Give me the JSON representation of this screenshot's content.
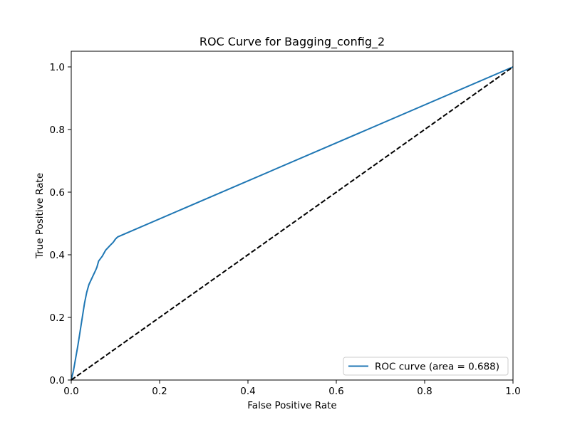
{
  "chart_data": {
    "type": "line",
    "title": "ROC Curve for Bagging_config_2",
    "xlabel": "False Positive Rate",
    "ylabel": "True Positive Rate",
    "xlim": [
      0.0,
      1.0
    ],
    "ylim": [
      0.0,
      1.05
    ],
    "xticks": [
      "0.0",
      "0.2",
      "0.4",
      "0.6",
      "0.8",
      "1.0"
    ],
    "yticks": [
      "0.0",
      "0.2",
      "0.4",
      "0.6",
      "0.8",
      "1.0"
    ],
    "grid": false,
    "legend_position": "lower right",
    "series": [
      {
        "name": "ROC curve (area = 0.688)",
        "color": "#1f77b4",
        "style": "solid",
        "points": [
          [
            0.0,
            0.0
          ],
          [
            0.005,
            0.03
          ],
          [
            0.01,
            0.07
          ],
          [
            0.015,
            0.11
          ],
          [
            0.02,
            0.155
          ],
          [
            0.025,
            0.2
          ],
          [
            0.03,
            0.245
          ],
          [
            0.035,
            0.28
          ],
          [
            0.04,
            0.305
          ],
          [
            0.045,
            0.32
          ],
          [
            0.05,
            0.335
          ],
          [
            0.055,
            0.35
          ],
          [
            0.058,
            0.36
          ],
          [
            0.062,
            0.38
          ],
          [
            0.07,
            0.395
          ],
          [
            0.078,
            0.415
          ],
          [
            0.088,
            0.43
          ],
          [
            0.095,
            0.44
          ],
          [
            0.1,
            0.45
          ],
          [
            0.105,
            0.457
          ],
          [
            1.0,
            1.0
          ]
        ]
      },
      {
        "name": "",
        "color": "#000000",
        "style": "dashed",
        "points": [
          [
            0.0,
            0.0
          ],
          [
            1.0,
            1.0
          ]
        ]
      }
    ]
  }
}
